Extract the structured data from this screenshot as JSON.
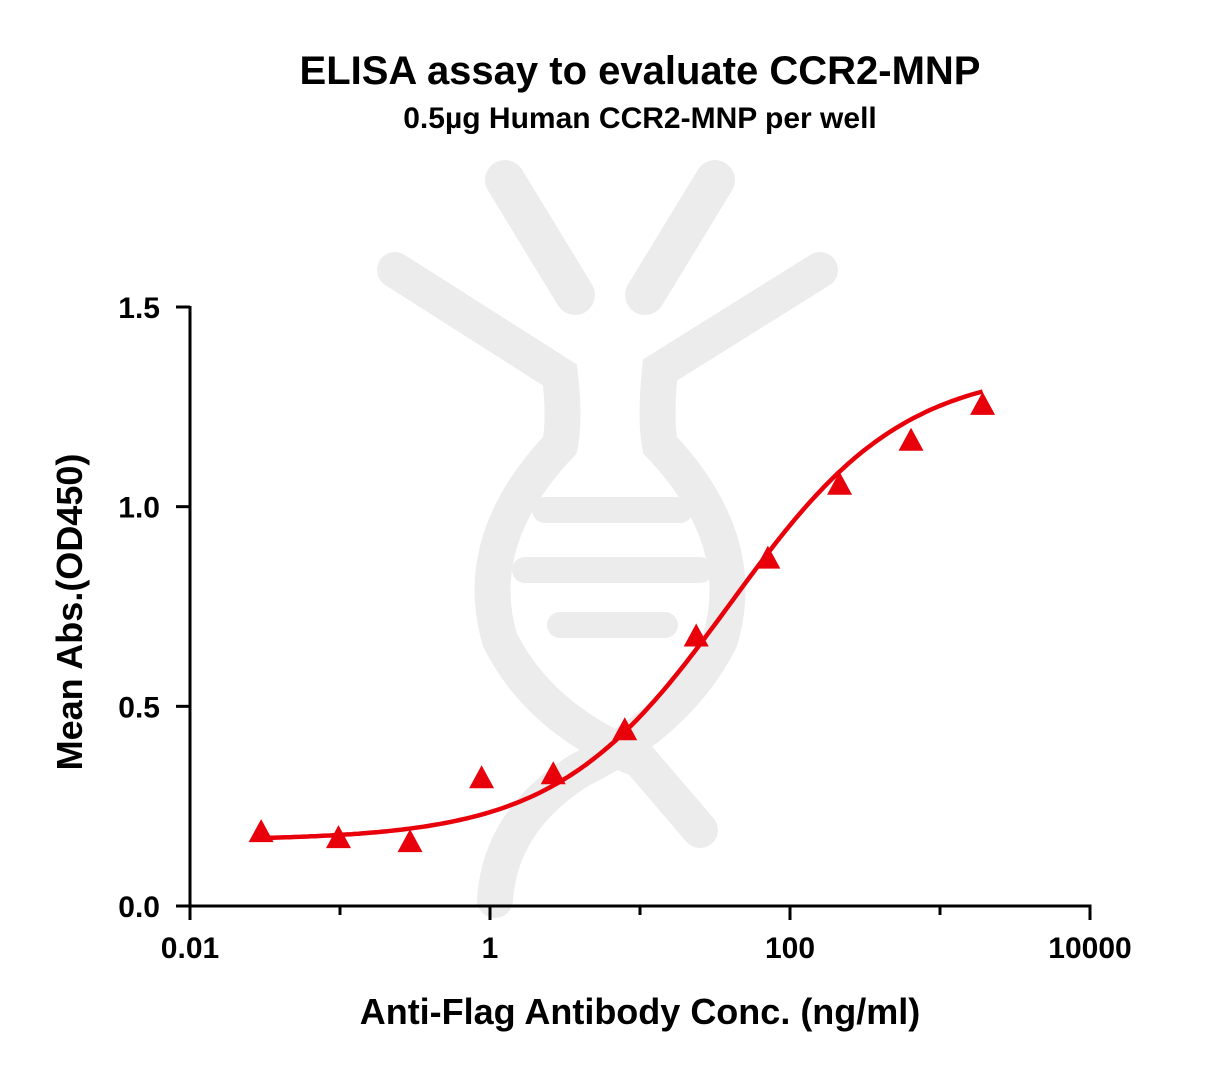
{
  "chart_data": {
    "type": "scatter",
    "title": "ELISA assay to evaluate CCR2-MNP",
    "subtitle": "0.5µg Human CCR2-MNP per well",
    "xlabel": "Anti-Flag Antibody Conc. (ng/ml)",
    "ylabel": "Mean Abs.(OD450)",
    "xscale": "log",
    "xlim": [
      0.01,
      10000
    ],
    "ylim": [
      0.0,
      1.5
    ],
    "xticks": [
      {
        "value": 0.01,
        "label": "0.01"
      },
      {
        "value": 1,
        "label": "1"
      },
      {
        "value": 100,
        "label": "100"
      },
      {
        "value": 10000,
        "label": "10000"
      }
    ],
    "yticks": [
      {
        "value": 0.0,
        "label": "0.0"
      },
      {
        "value": 0.5,
        "label": "0.5"
      },
      {
        "value": 1.0,
        "label": "1.0"
      },
      {
        "value": 1.5,
        "label": "1.5"
      }
    ],
    "grid": false,
    "series": [
      {
        "marker": "triangle",
        "color": "#e8000b",
        "x": [
          0.0298,
          0.0977,
          0.293,
          0.879,
          2.64,
          7.91,
          23.7,
          71.2,
          214,
          641,
          1923
        ],
        "y": [
          0.185,
          0.17,
          0.16,
          0.32,
          0.33,
          0.44,
          0.675,
          0.87,
          1.055,
          1.165,
          1.255
        ]
      }
    ],
    "fit_curve": {
      "type": "4PL",
      "color": "#e8000b",
      "bottom": 0.165,
      "top": 1.35,
      "ec50": 40,
      "hill": 0.75
    }
  }
}
